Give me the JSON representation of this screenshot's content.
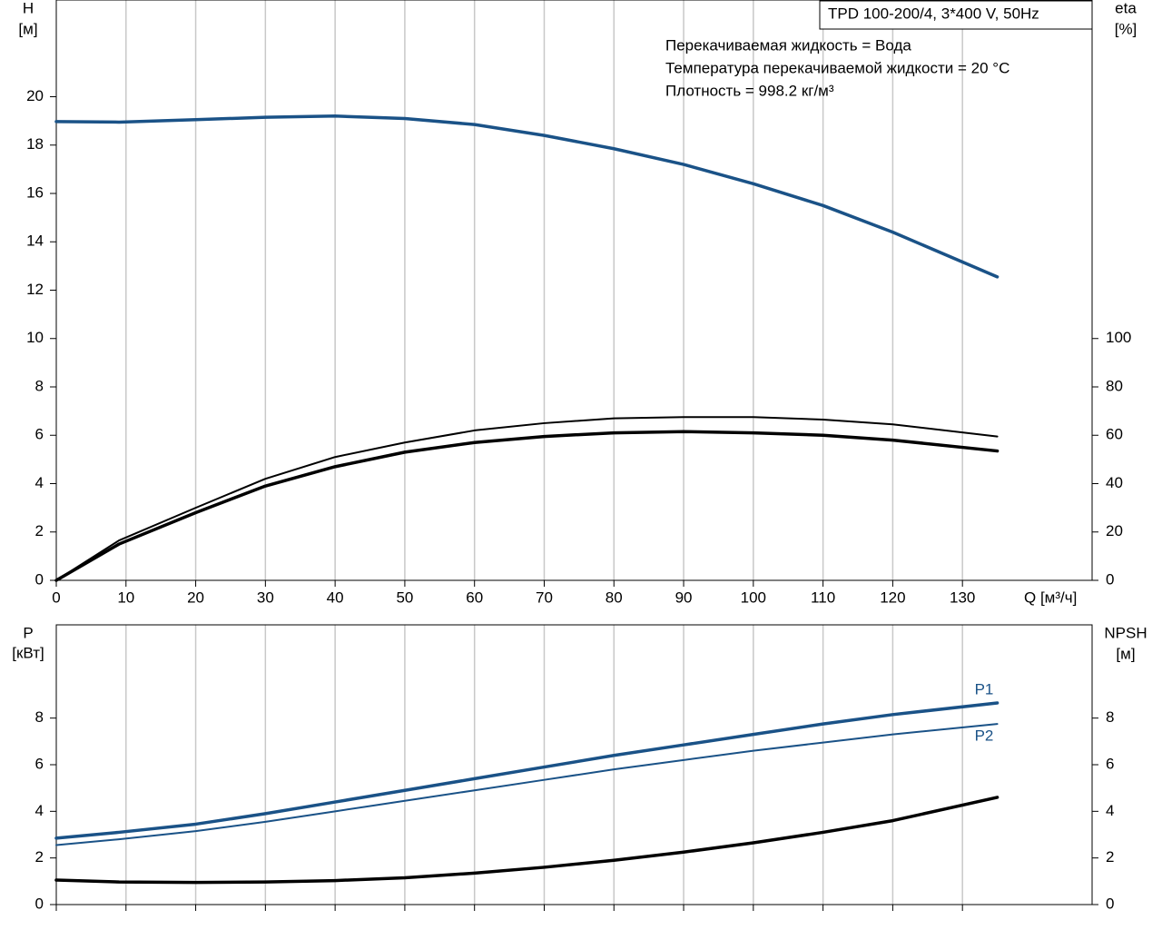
{
  "chart_data": [
    {
      "type": "line",
      "title": "TPD 100-200/4, 3*400 V, 50Hz",
      "annotations": [
        "Перекачиваемая жидкость = Вода",
        "Температура перекачиваемой жидкости = 20 °C",
        "Плотность = 998.2 кг/м³"
      ],
      "ylabel": "H",
      "yunit": "[м]",
      "y2label": "eta",
      "y2unit": "[%]",
      "xlabel": "Q [м³/ч]",
      "x": [
        0,
        9,
        20,
        30,
        40,
        50,
        60,
        70,
        80,
        90,
        100,
        110,
        120,
        135
      ],
      "xlim": [
        0,
        148.6
      ],
      "xticks": [
        0,
        10,
        20,
        30,
        40,
        50,
        60,
        70,
        80,
        90,
        100,
        110,
        120,
        130
      ],
      "ylim": [
        0,
        24
      ],
      "yticks": [
        0,
        2,
        4,
        6,
        8,
        10,
        12,
        14,
        16,
        18,
        20
      ],
      "y2lim": [
        0,
        240
      ],
      "y2ticks": [
        0,
        20,
        40,
        60,
        80,
        100
      ],
      "grid": "x",
      "series": [
        {
          "color": "#1a5287",
          "width": 3.5,
          "values": [
            18.97,
            18.95,
            19.05,
            19.15,
            19.2,
            19.1,
            18.85,
            18.4,
            17.85,
            17.2,
            16.4,
            15.5,
            14.4,
            12.55
          ]
        },
        {
          "color": "#000000",
          "width": 2,
          "axis": "y2",
          "values": [
            0,
            16.5,
            30,
            42,
            51,
            57,
            62,
            65,
            67,
            67.5,
            67.5,
            66.5,
            64.5,
            59.5
          ]
        },
        {
          "color": "#000000",
          "width": 3.5,
          "axis": "y2",
          "values": [
            0,
            15,
            28,
            39,
            47,
            53,
            57,
            59.5,
            61,
            61.5,
            61,
            60,
            58,
            53.5
          ]
        }
      ]
    },
    {
      "type": "line",
      "ylabel": "P",
      "yunit": "[кВт]",
      "y2label": "NPSH",
      "y2unit": "[м]",
      "x": [
        0,
        9,
        20,
        30,
        40,
        50,
        60,
        70,
        80,
        90,
        100,
        110,
        120,
        135
      ],
      "xlim": [
        0,
        148.6
      ],
      "xticks": [
        0,
        10,
        20,
        30,
        40,
        50,
        60,
        70,
        80,
        90,
        100,
        110,
        120,
        130
      ],
      "ylim": [
        0,
        12
      ],
      "yticks": [
        0,
        2,
        4,
        6,
        8
      ],
      "y2lim": [
        0,
        12
      ],
      "y2ticks": [
        0,
        2,
        4,
        6,
        8
      ],
      "grid": "x",
      "series": [
        {
          "name": "P1",
          "color": "#1a5287",
          "width": 3.5,
          "values": [
            2.85,
            3.1,
            3.45,
            3.9,
            4.4,
            4.9,
            5.4,
            5.9,
            6.4,
            6.85,
            7.3,
            7.75,
            8.15,
            8.65
          ]
        },
        {
          "name": "P2",
          "color": "#1a5287",
          "width": 2,
          "values": [
            2.55,
            2.8,
            3.15,
            3.55,
            4.0,
            4.45,
            4.9,
            5.35,
            5.8,
            6.2,
            6.6,
            6.95,
            7.3,
            7.75
          ]
        },
        {
          "color": "#000000",
          "width": 3.5,
          "axis": "y2",
          "values": [
            1.05,
            0.97,
            0.95,
            0.97,
            1.03,
            1.15,
            1.35,
            1.6,
            1.9,
            2.25,
            2.65,
            3.1,
            3.6,
            4.6
          ]
        }
      ]
    }
  ]
}
